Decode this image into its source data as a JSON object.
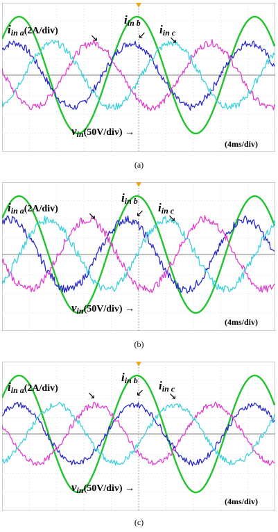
{
  "chart_data": [
    {
      "type": "line",
      "caption": "(a)",
      "scale_label": "(4ms/div)",
      "annotations": {
        "ia_sym": "i",
        "ia_sub": "in a",
        "ia_unit": "(2A/div)",
        "ib_sym": "i",
        "ib_sub": "in b",
        "ic_sym": "i",
        "ic_sub": "in c",
        "v_sym": "v",
        "v_sub": "in",
        "v_unit": "(50V/div)"
      },
      "grid": true,
      "series": [
        {
          "key": "v",
          "color": "#22c32e",
          "amplitude": 1.0,
          "phase_deg": 0,
          "noise": 0.0
        },
        {
          "key": "ia",
          "color": "#2a2ac8",
          "amplitude": 0.55,
          "phase_deg": 15,
          "noise": 0.06
        },
        {
          "key": "ib",
          "color": "#e040d0",
          "amplitude": 0.55,
          "phase_deg": 135,
          "noise": 0.06
        },
        {
          "key": "ic",
          "color": "#3fd2dc",
          "amplitude": 0.55,
          "phase_deg": -105,
          "noise": 0.06
        }
      ]
    },
    {
      "type": "line",
      "caption": "(b)",
      "scale_label": "(4ms/div)",
      "annotations": {
        "ia_sym": "i",
        "ia_sub": "in a",
        "ia_unit": "(2A/div)",
        "ib_sym": "i",
        "ib_sub": "in b",
        "ic_sym": "i",
        "ic_sub": "in c",
        "v_sym": "v",
        "v_sub": "in",
        "v_unit": "(50V/div)"
      },
      "grid": true,
      "series": [
        {
          "key": "v",
          "color": "#22c32e",
          "amplitude": 1.0,
          "phase_deg": 0,
          "noise": 0.0
        },
        {
          "key": "ia",
          "color": "#2a2ac8",
          "amplitude": 0.6,
          "phase_deg": 30,
          "noise": 0.07
        },
        {
          "key": "ib",
          "color": "#e040d0",
          "amplitude": 0.6,
          "phase_deg": 150,
          "noise": 0.07
        },
        {
          "key": "ic",
          "color": "#3fd2dc",
          "amplitude": 0.6,
          "phase_deg": -90,
          "noise": 0.07
        }
      ]
    },
    {
      "type": "line",
      "caption": "(c)",
      "scale_label": "(4ms/div)",
      "annotations": {
        "ia_sym": "i",
        "ia_sub": "in a",
        "ia_unit": "(2A/div)",
        "ib_sym": "i",
        "ib_sub": "in b",
        "ic_sym": "i",
        "ic_sub": "in c",
        "v_sym": "v",
        "v_sub": "in",
        "v_unit": "(50V/div)"
      },
      "grid": true,
      "series": [
        {
          "key": "v",
          "color": "#22c32e",
          "amplitude": 1.0,
          "phase_deg": 0,
          "noise": 0.0
        },
        {
          "key": "ia",
          "color": "#2a2ac8",
          "amplitude": 0.5,
          "phase_deg": 5,
          "noise": 0.05
        },
        {
          "key": "ib",
          "color": "#e040d0",
          "amplitude": 0.5,
          "phase_deg": 125,
          "noise": 0.05
        },
        {
          "key": "ic",
          "color": "#3fd2dc",
          "amplitude": 0.5,
          "phase_deg": -115,
          "noise": 0.05
        }
      ]
    }
  ]
}
